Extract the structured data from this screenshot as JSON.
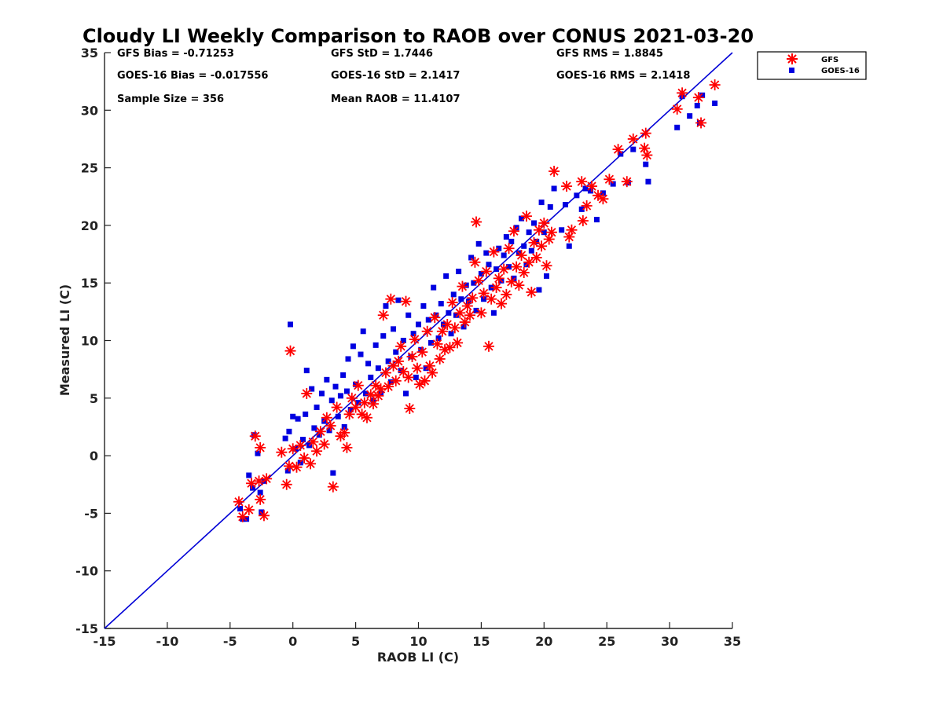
{
  "chart_data": {
    "type": "scatter",
    "title": "Cloudy LI Weekly Comparison to RAOB over CONUS 2021-03-20",
    "xlabel": "RAOB LI (C)",
    "ylabel": "Measured LI (C)",
    "xlim": [
      -15,
      35
    ],
    "ylim": [
      -15,
      35
    ],
    "xticks": [
      "-15",
      "-10",
      "-5",
      "0",
      "5",
      "10",
      "15",
      "20",
      "25",
      "30",
      "35"
    ],
    "yticks": [
      "-15",
      "-10",
      "-5",
      "0",
      "5",
      "10",
      "15",
      "20",
      "25",
      "30",
      "35"
    ],
    "grid": false,
    "legend_position": "outside top-right",
    "reference_line": {
      "name": "1:1",
      "points": [
        [
          -15,
          -15
        ],
        [
          35,
          35
        ]
      ],
      "color": "#0000d6"
    },
    "stats": {
      "gfs_bias": "GFS Bias = -0.71253",
      "gfs_std": "GFS StD = 1.7446",
      "gfs_rms": "GFS RMS = 1.8845",
      "goes_bias": "GOES-16 Bias = -0.017556",
      "goes_std": "GOES-16 StD = 2.1417",
      "goes_rms": "GOES-16 RMS = 2.1418",
      "sample_size": "Sample Size = 356",
      "mean_raob": "Mean RAOB = 11.4107"
    },
    "series": [
      {
        "name": "GFS",
        "marker": "asterisk",
        "color": "#ff0000",
        "points": [
          [
            -4.3,
            -4.0
          ],
          [
            -4.0,
            -5.3
          ],
          [
            -3.5,
            -4.7
          ],
          [
            -3.3,
            -2.4
          ],
          [
            -3.0,
            1.7
          ],
          [
            -2.7,
            -2.2
          ],
          [
            -2.6,
            -3.8
          ],
          [
            -2.6,
            0.7
          ],
          [
            -2.3,
            -5.2
          ],
          [
            -2.1,
            -2.0
          ],
          [
            -0.9,
            0.3
          ],
          [
            -0.5,
            -2.5
          ],
          [
            -0.3,
            -0.9
          ],
          [
            -0.2,
            9.1
          ],
          [
            0.0,
            0.6
          ],
          [
            0.3,
            -1.0
          ],
          [
            0.6,
            0.9
          ],
          [
            0.9,
            -0.2
          ],
          [
            1.1,
            5.4
          ],
          [
            1.4,
            -0.7
          ],
          [
            1.6,
            1.2
          ],
          [
            1.9,
            0.4
          ],
          [
            2.2,
            2.1
          ],
          [
            2.5,
            1.0
          ],
          [
            2.7,
            3.3
          ],
          [
            3.0,
            2.6
          ],
          [
            3.2,
            -2.7
          ],
          [
            3.5,
            4.2
          ],
          [
            3.8,
            1.7
          ],
          [
            4.1,
            2.0
          ],
          [
            4.3,
            0.7
          ],
          [
            4.5,
            3.6
          ],
          [
            4.7,
            5.0
          ],
          [
            5.0,
            4.2
          ],
          [
            5.2,
            6.1
          ],
          [
            5.5,
            3.6
          ],
          [
            5.7,
            4.6
          ],
          [
            5.9,
            3.3
          ],
          [
            6.2,
            5.3
          ],
          [
            6.4,
            4.5
          ],
          [
            6.6,
            6.1
          ],
          [
            6.8,
            5.2
          ],
          [
            7.0,
            5.8
          ],
          [
            7.2,
            12.2
          ],
          [
            7.4,
            7.2
          ],
          [
            7.6,
            6.0
          ],
          [
            7.8,
            13.6
          ],
          [
            8.0,
            7.8
          ],
          [
            8.2,
            6.5
          ],
          [
            8.4,
            8.2
          ],
          [
            8.6,
            9.5
          ],
          [
            8.8,
            7.3
          ],
          [
            9.0,
            13.4
          ],
          [
            9.2,
            6.8
          ],
          [
            9.3,
            4.1
          ],
          [
            9.5,
            8.6
          ],
          [
            9.7,
            10.1
          ],
          [
            9.9,
            7.6
          ],
          [
            10.1,
            6.2
          ],
          [
            10.3,
            9.0
          ],
          [
            10.5,
            6.5
          ],
          [
            10.7,
            10.8
          ],
          [
            10.9,
            7.8
          ],
          [
            11.1,
            7.2
          ],
          [
            11.3,
            12.0
          ],
          [
            11.5,
            9.7
          ],
          [
            11.7,
            8.4
          ],
          [
            11.9,
            10.8
          ],
          [
            12.1,
            9.2
          ],
          [
            12.3,
            11.4
          ],
          [
            12.5,
            9.4
          ],
          [
            12.7,
            13.3
          ],
          [
            12.9,
            11.1
          ],
          [
            13.1,
            9.8
          ],
          [
            13.3,
            12.4
          ],
          [
            13.5,
            14.7
          ],
          [
            13.7,
            11.6
          ],
          [
            13.9,
            13.0
          ],
          [
            14.1,
            12.2
          ],
          [
            14.3,
            13.7
          ],
          [
            14.5,
            16.8
          ],
          [
            14.6,
            20.3
          ],
          [
            14.8,
            15.2
          ],
          [
            15.0,
            12.4
          ],
          [
            15.2,
            14.1
          ],
          [
            15.4,
            16.0
          ],
          [
            15.6,
            9.5
          ],
          [
            15.8,
            13.6
          ],
          [
            16.0,
            17.7
          ],
          [
            16.2,
            14.6
          ],
          [
            16.4,
            15.4
          ],
          [
            16.6,
            13.2
          ],
          [
            16.8,
            16.2
          ],
          [
            17.0,
            14.0
          ],
          [
            17.2,
            18.0
          ],
          [
            17.4,
            15.1
          ],
          [
            17.6,
            19.5
          ],
          [
            17.8,
            16.4
          ],
          [
            18.0,
            14.8
          ],
          [
            18.2,
            17.4
          ],
          [
            18.4,
            15.9
          ],
          [
            18.6,
            20.8
          ],
          [
            18.8,
            16.8
          ],
          [
            19.0,
            14.2
          ],
          [
            19.2,
            18.5
          ],
          [
            19.4,
            17.2
          ],
          [
            19.6,
            19.6
          ],
          [
            19.8,
            18.2
          ],
          [
            20.0,
            20.2
          ],
          [
            20.2,
            16.5
          ],
          [
            20.4,
            18.8
          ],
          [
            20.6,
            19.4
          ],
          [
            20.8,
            24.7
          ],
          [
            21.8,
            23.4
          ],
          [
            22.0,
            19.0
          ],
          [
            22.2,
            19.6
          ],
          [
            23.0,
            23.8
          ],
          [
            23.1,
            20.4
          ],
          [
            23.4,
            21.7
          ],
          [
            23.8,
            23.4
          ],
          [
            24.3,
            22.6
          ],
          [
            24.7,
            22.3
          ],
          [
            25.2,
            24.0
          ],
          [
            25.9,
            26.6
          ],
          [
            26.6,
            23.8
          ],
          [
            27.1,
            27.5
          ],
          [
            28.0,
            26.7
          ],
          [
            28.1,
            28.0
          ],
          [
            28.2,
            26.1
          ],
          [
            30.6,
            30.1
          ],
          [
            31.0,
            31.5
          ],
          [
            32.3,
            31.1
          ],
          [
            32.5,
            28.9
          ],
          [
            33.6,
            32.2
          ]
        ]
      },
      {
        "name": "GOES-16",
        "marker": "square",
        "color": "#0000e0",
        "points": [
          [
            -4.2,
            -4.6
          ],
          [
            -4.0,
            -5.5
          ],
          [
            -3.7,
            -5.5
          ],
          [
            -3.5,
            -1.7
          ],
          [
            -3.2,
            -2.8
          ],
          [
            -3.1,
            1.8
          ],
          [
            -2.8,
            0.2
          ],
          [
            -2.6,
            -3.2
          ],
          [
            -2.5,
            -4.9
          ],
          [
            -2.3,
            -2.2
          ],
          [
            -0.6,
            1.5
          ],
          [
            -0.4,
            -1.3
          ],
          [
            -0.3,
            2.1
          ],
          [
            -0.2,
            11.4
          ],
          [
            0.0,
            3.4
          ],
          [
            0.2,
            0.6
          ],
          [
            0.4,
            3.2
          ],
          [
            0.6,
            -0.6
          ],
          [
            0.8,
            1.4
          ],
          [
            1.0,
            3.6
          ],
          [
            1.1,
            7.4
          ],
          [
            1.3,
            0.9
          ],
          [
            1.5,
            5.8
          ],
          [
            1.7,
            2.4
          ],
          [
            1.9,
            4.2
          ],
          [
            2.1,
            1.8
          ],
          [
            2.3,
            5.4
          ],
          [
            2.5,
            3.0
          ],
          [
            2.7,
            6.6
          ],
          [
            2.9,
            2.2
          ],
          [
            3.1,
            4.8
          ],
          [
            3.2,
            -1.5
          ],
          [
            3.4,
            6.0
          ],
          [
            3.6,
            3.4
          ],
          [
            3.8,
            5.2
          ],
          [
            4.0,
            7.0
          ],
          [
            4.1,
            2.5
          ],
          [
            4.3,
            5.6
          ],
          [
            4.4,
            8.4
          ],
          [
            4.6,
            4.0
          ],
          [
            4.8,
            9.5
          ],
          [
            5.0,
            6.2
          ],
          [
            5.2,
            4.6
          ],
          [
            5.4,
            8.8
          ],
          [
            5.6,
            10.8
          ],
          [
            5.8,
            5.4
          ],
          [
            6.0,
            8.0
          ],
          [
            6.2,
            6.8
          ],
          [
            6.4,
            4.8
          ],
          [
            6.6,
            9.6
          ],
          [
            6.8,
            7.6
          ],
          [
            7.0,
            5.4
          ],
          [
            7.2,
            10.4
          ],
          [
            7.4,
            13.0
          ],
          [
            7.6,
            8.2
          ],
          [
            7.8,
            6.4
          ],
          [
            8.0,
            11.0
          ],
          [
            8.2,
            9.0
          ],
          [
            8.4,
            13.5
          ],
          [
            8.6,
            7.4
          ],
          [
            8.8,
            10.0
          ],
          [
            9.0,
            5.4
          ],
          [
            9.2,
            12.2
          ],
          [
            9.4,
            8.6
          ],
          [
            9.6,
            10.6
          ],
          [
            9.8,
            6.8
          ],
          [
            10.0,
            11.4
          ],
          [
            10.2,
            9.2
          ],
          [
            10.4,
            13.0
          ],
          [
            10.6,
            7.6
          ],
          [
            10.8,
            11.8
          ],
          [
            11.0,
            9.8
          ],
          [
            11.2,
            14.6
          ],
          [
            11.4,
            12.2
          ],
          [
            11.6,
            10.2
          ],
          [
            11.8,
            13.2
          ],
          [
            12.0,
            11.4
          ],
          [
            12.2,
            15.6
          ],
          [
            12.4,
            12.4
          ],
          [
            12.6,
            10.6
          ],
          [
            12.8,
            14.0
          ],
          [
            13.0,
            12.2
          ],
          [
            13.2,
            16.0
          ],
          [
            13.4,
            13.6
          ],
          [
            13.6,
            11.2
          ],
          [
            13.8,
            14.8
          ],
          [
            14.0,
            13.4
          ],
          [
            14.2,
            17.2
          ],
          [
            14.4,
            15.0
          ],
          [
            14.6,
            12.6
          ],
          [
            14.8,
            18.4
          ],
          [
            15.0,
            15.8
          ],
          [
            15.2,
            13.6
          ],
          [
            15.4,
            17.6
          ],
          [
            15.6,
            16.6
          ],
          [
            15.8,
            14.6
          ],
          [
            16.0,
            12.4
          ],
          [
            16.2,
            16.2
          ],
          [
            16.4,
            18.0
          ],
          [
            16.6,
            15.2
          ],
          [
            16.8,
            17.4
          ],
          [
            17.0,
            19.0
          ],
          [
            17.2,
            16.4
          ],
          [
            17.4,
            18.6
          ],
          [
            17.6,
            15.4
          ],
          [
            17.8,
            19.8
          ],
          [
            18.0,
            17.6
          ],
          [
            18.2,
            20.6
          ],
          [
            18.4,
            18.2
          ],
          [
            18.6,
            16.6
          ],
          [
            18.8,
            19.4
          ],
          [
            19.0,
            17.8
          ],
          [
            19.2,
            20.2
          ],
          [
            19.4,
            18.6
          ],
          [
            19.6,
            14.4
          ],
          [
            19.8,
            22.0
          ],
          [
            20.0,
            19.4
          ],
          [
            20.2,
            15.6
          ],
          [
            20.5,
            21.6
          ],
          [
            20.8,
            23.2
          ],
          [
            21.4,
            19.6
          ],
          [
            21.7,
            21.8
          ],
          [
            22.0,
            18.2
          ],
          [
            22.6,
            22.6
          ],
          [
            23.0,
            21.4
          ],
          [
            23.3,
            23.2
          ],
          [
            23.7,
            23.0
          ],
          [
            24.2,
            20.5
          ],
          [
            24.7,
            22.8
          ],
          [
            25.5,
            23.6
          ],
          [
            26.1,
            26.2
          ],
          [
            26.7,
            23.7
          ],
          [
            27.1,
            26.6
          ],
          [
            28.1,
            25.3
          ],
          [
            28.3,
            23.8
          ],
          [
            30.6,
            28.5
          ],
          [
            31.0,
            31.2
          ],
          [
            31.6,
            29.5
          ],
          [
            32.2,
            30.4
          ],
          [
            32.4,
            28.9
          ],
          [
            32.6,
            31.3
          ],
          [
            33.6,
            30.6
          ]
        ]
      }
    ]
  }
}
